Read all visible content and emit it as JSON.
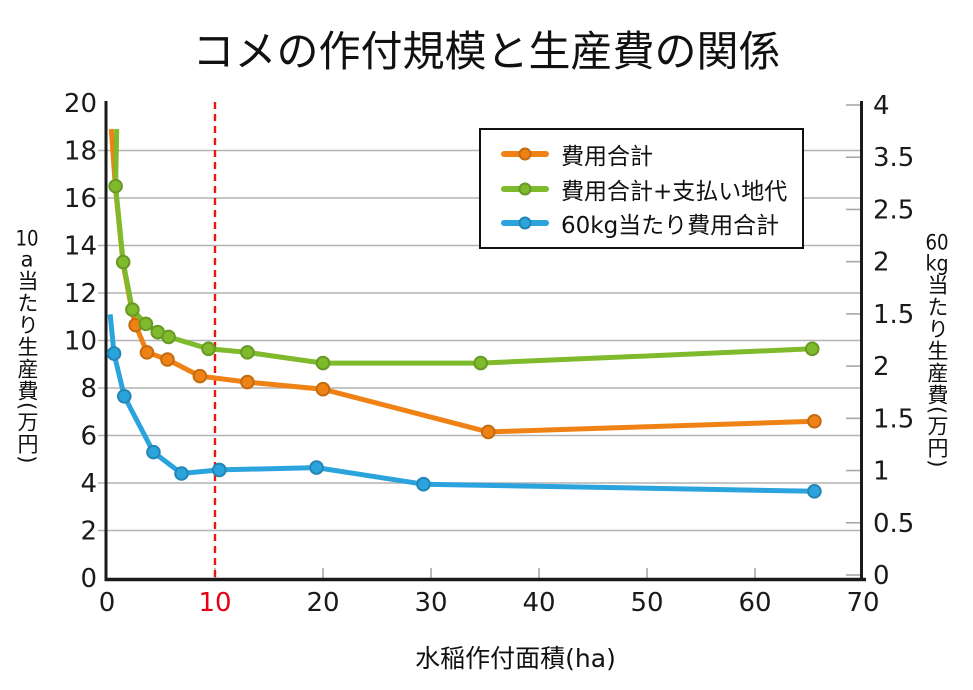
{
  "title": "コメの作付規模と生産費の関係",
  "axes": {
    "x": {
      "title": "水稲作付面積(ha)",
      "ticks": [
        0,
        10,
        20,
        30,
        40,
        50,
        60,
        70
      ],
      "highlight_tick": 10,
      "range": [
        0,
        70
      ]
    },
    "y_left": {
      "title": "10a当たり生産費(万円)",
      "ticks": [
        20,
        18,
        16,
        14,
        12,
        10,
        8,
        6,
        4,
        2,
        0
      ],
      "range": [
        0,
        20
      ]
    },
    "y_right": {
      "title": "60kg当たり生産費(万円)",
      "tick_labels": [
        "4",
        "3.5",
        "2.5",
        "2",
        "1.5",
        "2",
        "1.5",
        "1",
        "0.5",
        "0"
      ]
    }
  },
  "legend": {
    "items": [
      {
        "label": "費用合計",
        "color": "#ef8214"
      },
      {
        "label": "費用合計+支払い地代",
        "color": "#7eba2c"
      },
      {
        "label": "60kg当たり費用合計",
        "color": "#2ba3dc"
      }
    ]
  },
  "reference_line": {
    "x": 10,
    "style": "dashed",
    "color": "#e8190c",
    "label": "10",
    "label_color": "#e60012"
  },
  "colors": {
    "grid": "#b3b3b3",
    "tick": "#a8a8a8",
    "axis": "#1a1a1a"
  },
  "chart_data": {
    "type": "line",
    "title": "コメの作付規模と生産費の関係",
    "xlabel": "水稲作付面積(ha)",
    "ylabel_left": "10a当たり生産費(万円)",
    "ylabel_right": "60kg当たり生産費(万円)",
    "xlim": [
      0,
      70
    ],
    "ylim_left": [
      0,
      20
    ],
    "grid": "horizontal-only",
    "legend_position": "upper-center-right",
    "series": [
      {
        "name": "費用合計",
        "color": "#ef8214",
        "axis": "left",
        "points": [
          [
            0.4,
            18.9,
            0
          ],
          [
            0.8,
            16.35,
            0
          ],
          [
            1.5,
            13.2,
            0
          ],
          [
            2.35,
            11.15,
            0
          ],
          [
            2.65,
            10.65,
            1
          ],
          [
            3.7,
            9.5,
            1
          ],
          [
            5.6,
            9.2,
            1
          ],
          [
            8.6,
            8.5,
            1
          ],
          [
            13,
            8.25,
            1
          ],
          [
            20,
            7.95,
            1
          ],
          [
            35.3,
            6.15,
            1
          ],
          [
            65.5,
            6.6,
            1
          ]
        ]
      },
      {
        "name": "費用合計+支払い地代",
        "color": "#7eba2c",
        "axis": "left",
        "points": [
          [
            0.9,
            18.9,
            0
          ],
          [
            0.8,
            16.5,
            1
          ],
          [
            1.5,
            13.3,
            1
          ],
          [
            2.35,
            11.3,
            1
          ],
          [
            3.6,
            10.7,
            1
          ],
          [
            4.7,
            10.35,
            1
          ],
          [
            5.7,
            10.15,
            1
          ],
          [
            9.4,
            9.65,
            1
          ],
          [
            13,
            9.5,
            1
          ],
          [
            20,
            9.05,
            1
          ],
          [
            34.6,
            9.05,
            1
          ],
          [
            65.3,
            9.65,
            1
          ]
        ]
      },
      {
        "name": "60kg当たり費用合計",
        "color": "#2ba3dc",
        "axis": "right",
        "note": "y values given in left-axis plotting units as drawn",
        "points": [
          [
            0.3,
            11.1,
            0
          ],
          [
            0.65,
            9.45,
            1
          ],
          [
            1.6,
            7.65,
            1
          ],
          [
            4.3,
            5.3,
            1
          ],
          [
            6.9,
            4.4,
            1
          ],
          [
            10.4,
            4.55,
            1
          ],
          [
            19.4,
            4.65,
            1
          ],
          [
            29.3,
            3.95,
            1
          ],
          [
            65.5,
            3.65,
            1
          ]
        ]
      }
    ]
  }
}
